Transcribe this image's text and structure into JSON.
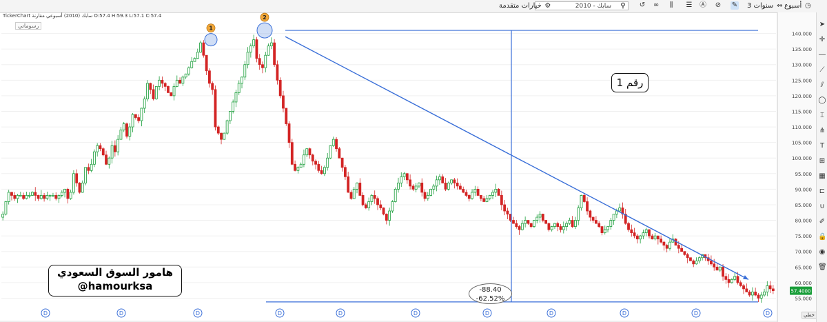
{
  "toolbar": {
    "period": "أسبوع",
    "range": "3 سنوات",
    "symbol_value": "2010 - سابك",
    "advanced_options": "خيارات متقدمة"
  },
  "info_line": "TickerChart  سابك (2010)  أسبوعي مقارنة  O:57.4  H:59.3  L:57.1  C:57.4",
  "drawings_tag": "رسوماتي",
  "watermark": {
    "line1": "هامور السوق السعودي",
    "line2": "@hamourksa"
  },
  "label_box": "رقم 1",
  "measure": {
    "value": "-88.40",
    "percent": "-62.52%"
  },
  "footer_tag": "خطي",
  "colors": {
    "up": "#1a9e3a",
    "down": "#d32424",
    "drawing": "#3a6fd8",
    "price_tag": "#1a9e3a"
  },
  "chart_data": {
    "type": "candlestick",
    "ylim": [
      52,
      145
    ],
    "y_ticks": [
      55,
      60,
      65,
      70,
      75,
      80,
      85,
      90,
      95,
      100,
      105,
      110,
      115,
      120,
      125,
      130,
      135,
      140
    ],
    "y_tick_labels": [
      "55.000",
      "60.000",
      "65.000",
      "70.000",
      "75.000",
      "80.000",
      "85.000",
      "90.000",
      "95.000",
      "100.000",
      "105.000",
      "110.000",
      "115.000",
      "120.000",
      "125.000",
      "130.000",
      "135.000",
      "140.000"
    ],
    "last_price_label": "57.4000",
    "last_price": 57.4,
    "close_series": [
      82,
      86,
      89,
      88,
      87,
      88,
      88,
      87,
      88,
      88,
      89,
      88,
      87,
      88,
      87,
      88,
      88,
      88,
      87,
      88,
      89,
      90,
      87,
      89,
      95,
      92,
      89,
      92,
      97,
      96,
      98,
      102,
      104,
      103,
      101,
      98,
      100,
      104,
      102,
      106,
      109,
      111,
      107,
      110,
      114,
      113,
      112,
      116,
      119,
      124,
      122,
      119,
      123,
      125,
      124,
      123,
      121,
      120,
      123,
      125,
      124,
      126,
      127,
      129,
      131,
      132,
      134,
      137,
      133,
      128,
      124,
      122,
      110,
      108,
      106,
      108,
      112,
      115,
      118,
      121,
      124,
      126,
      130,
      134,
      136,
      138,
      132,
      130,
      129,
      133,
      136,
      137,
      130,
      125,
      120,
      116,
      111,
      105,
      98,
      96,
      97,
      98,
      101,
      103,
      101,
      99,
      98,
      96,
      95,
      97,
      100,
      104,
      106,
      103,
      100,
      97,
      94,
      89,
      87,
      90,
      92,
      88,
      85,
      84,
      86,
      88,
      87,
      85,
      84,
      82,
      80,
      83,
      86,
      90,
      92,
      94,
      95,
      93,
      91,
      90,
      91,
      92,
      89,
      87,
      88,
      90,
      91,
      93,
      94,
      92,
      90,
      92,
      93,
      92,
      91,
      90,
      89,
      88,
      87,
      89,
      90,
      88,
      87,
      86,
      87,
      88,
      89,
      90,
      88,
      85,
      83,
      82,
      80,
      79,
      78,
      77,
      79,
      80,
      79,
      78,
      80,
      81,
      82,
      80,
      79,
      77,
      78,
      79,
      78,
      77,
      78,
      79,
      80,
      78,
      80,
      84,
      88,
      86,
      83,
      81,
      80,
      79,
      78,
      76,
      77,
      78,
      80,
      82,
      83,
      84,
      82,
      79,
      77,
      76,
      75,
      74,
      75,
      76,
      77,
      75,
      74,
      75,
      74,
      73,
      72,
      71,
      73,
      74,
      72,
      71,
      70,
      69,
      68,
      67,
      66,
      67,
      68,
      69,
      68,
      67,
      66,
      65,
      64,
      65,
      62,
      61,
      60,
      61,
      62,
      60,
      59,
      58,
      57,
      56,
      57,
      56,
      55,
      56,
      57,
      59,
      58,
      57.4
    ],
    "markers": [
      {
        "label": "1",
        "price": 138
      },
      {
        "label": "2",
        "price": 141
      }
    ],
    "lines": {
      "resistance_horizontal": {
        "price": 141
      },
      "trend_start": {
        "price": 139
      },
      "trend_end": {
        "price": 61
      },
      "support_horizontal": {
        "price": 53.8
      }
    },
    "dividend_markers": [
      "D",
      "D",
      "D",
      "D",
      "D",
      "D",
      "D",
      "D",
      "D",
      "D",
      "D",
      "D"
    ]
  }
}
